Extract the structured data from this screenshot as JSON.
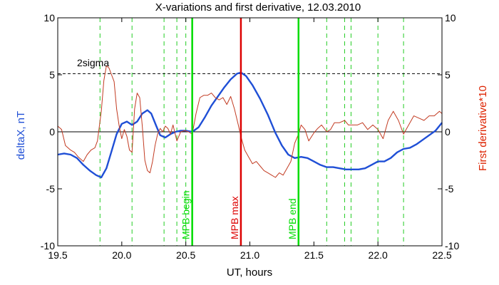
{
  "chart_data": {
    "type": "line",
    "title": "X-variations and first derivative, 12.03.2010",
    "xlabel": "UT, hours",
    "ylabel_left": "deltaX, nT",
    "ylabel_right": "First derivative*10",
    "xlim": [
      19.5,
      22.5
    ],
    "ylim": [
      -10,
      10
    ],
    "ylim_right": [
      -10,
      10
    ],
    "x_ticks": [
      19.5,
      20.0,
      20.5,
      21.0,
      21.5,
      22.0,
      22.5
    ],
    "x_tick_labels": [
      "19.5",
      "20.0",
      "20.5",
      "21.0",
      "21.5",
      "22.0",
      "22.5"
    ],
    "y_ticks": [
      -10,
      -5,
      0,
      5,
      10
    ],
    "y_tick_labels": [
      "-10",
      "-5",
      "0",
      "5",
      "10"
    ],
    "threshold": {
      "label": "2sigma",
      "value": 5.1
    },
    "zero_line": 0,
    "vertical_markers": [
      {
        "label": "MPB begin",
        "x": 20.55,
        "color": "#00dd00"
      },
      {
        "label": "MPB max",
        "x": 20.93,
        "color": "#dd0000"
      },
      {
        "label": "MPB end",
        "x": 21.38,
        "color": "#00dd00"
      }
    ],
    "dashed_verticals_x": [
      19.5,
      19.83,
      20.08,
      20.33,
      20.43,
      20.5,
      21.6,
      21.74,
      21.79,
      22.0,
      22.2
    ],
    "series": [
      {
        "key": "deltaX",
        "axis": "left",
        "color": "#1f4fd6",
        "x": [
          19.5,
          19.55,
          19.6,
          19.65,
          19.7,
          19.75,
          19.8,
          19.84,
          19.88,
          19.92,
          19.96,
          20.0,
          20.04,
          20.08,
          20.12,
          20.16,
          20.2,
          20.23,
          20.27,
          20.3,
          20.34,
          20.38,
          20.42,
          20.46,
          20.5,
          20.55,
          20.6,
          20.65,
          20.7,
          20.75,
          20.8,
          20.85,
          20.9,
          20.93,
          20.97,
          21.02,
          21.08,
          21.14,
          21.2,
          21.25,
          21.3,
          21.35,
          21.4,
          21.45,
          21.5,
          21.55,
          21.6,
          21.65,
          21.7,
          21.75,
          21.8,
          21.85,
          21.9,
          21.95,
          22.0,
          22.05,
          22.1,
          22.15,
          22.2,
          22.25,
          22.3,
          22.35,
          22.4,
          22.45,
          22.5
        ],
        "values": [
          -2.0,
          -1.9,
          -2.0,
          -2.3,
          -2.9,
          -3.4,
          -3.8,
          -4.0,
          -3.2,
          -1.7,
          -0.2,
          0.7,
          0.9,
          0.6,
          0.9,
          1.6,
          1.9,
          1.6,
          0.5,
          -0.3,
          -0.5,
          -0.2,
          0.0,
          0.1,
          0.1,
          0.0,
          0.4,
          1.3,
          2.3,
          3.1,
          3.9,
          4.6,
          5.1,
          5.2,
          4.9,
          4.1,
          2.9,
          1.5,
          -0.1,
          -1.2,
          -2.0,
          -2.3,
          -2.2,
          -2.3,
          -2.6,
          -2.9,
          -3.1,
          -3.1,
          -3.2,
          -3.3,
          -3.3,
          -3.3,
          -3.2,
          -2.9,
          -2.6,
          -2.6,
          -2.3,
          -1.8,
          -1.5,
          -1.4,
          -1.1,
          -0.7,
          -0.3,
          0.1,
          0.8
        ]
      },
      {
        "key": "derivative",
        "axis": "right",
        "color": "#c23b22",
        "x": [
          19.5,
          19.53,
          19.56,
          19.6,
          19.63,
          19.66,
          19.7,
          19.73,
          19.76,
          19.79,
          19.81,
          19.84,
          19.86,
          19.88,
          19.9,
          19.92,
          19.94,
          19.96,
          19.98,
          20.0,
          20.02,
          20.04,
          20.06,
          20.08,
          20.1,
          20.12,
          20.14,
          20.16,
          20.18,
          20.2,
          20.22,
          20.24,
          20.26,
          20.28,
          20.3,
          20.32,
          20.34,
          20.36,
          20.38,
          20.4,
          20.43,
          20.46,
          20.49,
          20.52,
          20.55,
          20.58,
          20.61,
          20.64,
          20.67,
          20.7,
          20.73,
          20.76,
          20.79,
          20.82,
          20.85,
          20.88,
          20.91,
          20.93,
          20.96,
          20.99,
          21.02,
          21.05,
          21.08,
          21.11,
          21.14,
          21.17,
          21.2,
          21.23,
          21.26,
          21.29,
          21.32,
          21.35,
          21.38,
          21.4,
          21.43,
          21.46,
          21.5,
          21.53,
          21.56,
          21.6,
          21.63,
          21.66,
          21.7,
          21.74,
          21.77,
          21.8,
          21.84,
          21.88,
          21.92,
          21.96,
          22.0,
          22.04,
          22.08,
          22.12,
          22.16,
          22.2,
          22.24,
          22.28,
          22.32,
          22.36,
          22.4,
          22.44,
          22.48,
          22.5
        ],
        "values": [
          0.5,
          0.2,
          -1.2,
          -1.6,
          -1.8,
          -2.2,
          -2.6,
          -2.0,
          -1.6,
          -1.4,
          -0.8,
          1.8,
          4.5,
          5.8,
          5.6,
          5.0,
          4.4,
          2.0,
          0.5,
          -0.6,
          0.2,
          -0.4,
          -1.6,
          -1.8,
          2.0,
          3.4,
          3.0,
          0.5,
          -2.5,
          -3.4,
          -3.6,
          -2.6,
          -1.2,
          -0.2,
          0.3,
          0.0,
          0.5,
          0.3,
          -0.2,
          0.6,
          -0.8,
          0.0,
          0.1,
          0.0,
          -0.2,
          1.6,
          3.0,
          3.2,
          3.2,
          3.4,
          3.0,
          2.8,
          3.0,
          2.4,
          3.1,
          2.0,
          0.6,
          -0.4,
          -1.6,
          -2.2,
          -2.8,
          -2.6,
          -3.0,
          -3.4,
          -3.6,
          -3.8,
          -4.0,
          -3.6,
          -3.8,
          -3.2,
          -2.6,
          -1.0,
          -0.2,
          0.6,
          0.2,
          -0.8,
          -0.1,
          0.3,
          0.6,
          0.0,
          0.2,
          0.8,
          0.8,
          1.0,
          0.6,
          0.6,
          0.6,
          0.8,
          0.2,
          0.6,
          0.2,
          -0.6,
          1.0,
          1.8,
          1.0,
          -0.2,
          0.6,
          1.4,
          1.2,
          1.0,
          1.4,
          1.4,
          1.8,
          1.6
        ]
      }
    ]
  }
}
